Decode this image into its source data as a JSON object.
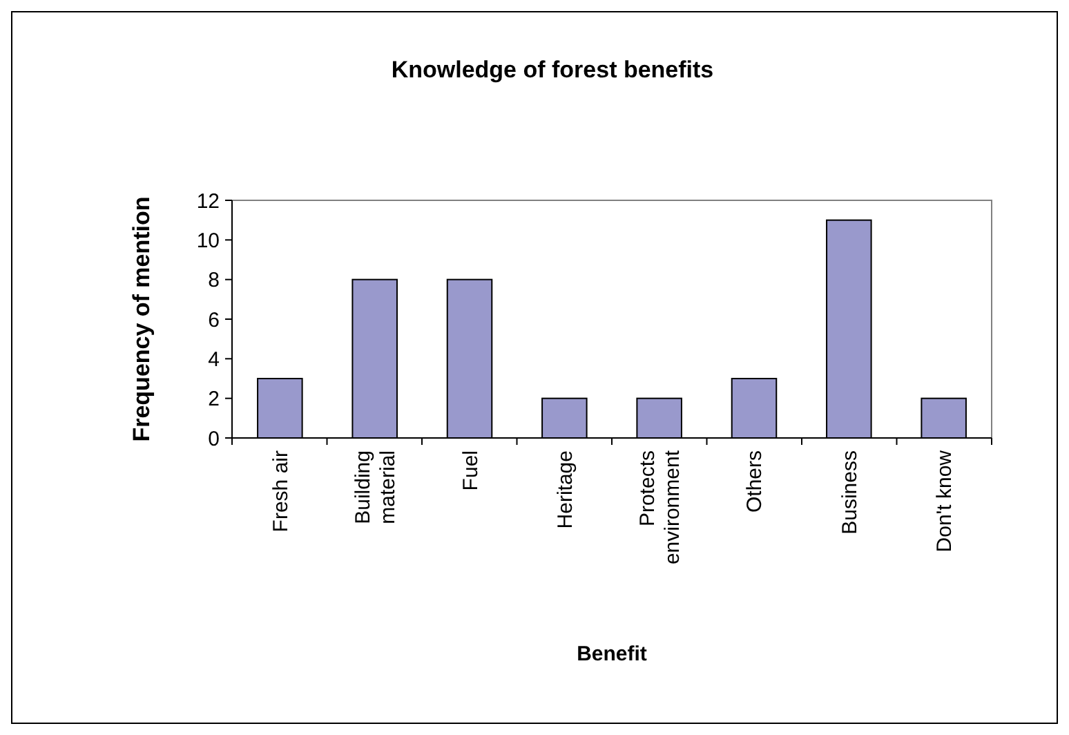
{
  "chart_data": {
    "type": "bar",
    "title": "Knowledge of forest benefits",
    "xlabel": "Benefit",
    "ylabel": "Frequency of mention",
    "categories": [
      "Fresh air",
      "Building material",
      "Fuel",
      "Heritage",
      "Protects environment",
      "Others",
      "Business",
      "Don't know"
    ],
    "values": [
      3,
      8,
      8,
      2,
      2,
      3,
      11,
      2
    ],
    "color": "#9999cc",
    "ylim": [
      0,
      12
    ],
    "yticks": [
      0,
      2,
      4,
      6,
      8,
      10,
      12
    ],
    "grid": false
  }
}
